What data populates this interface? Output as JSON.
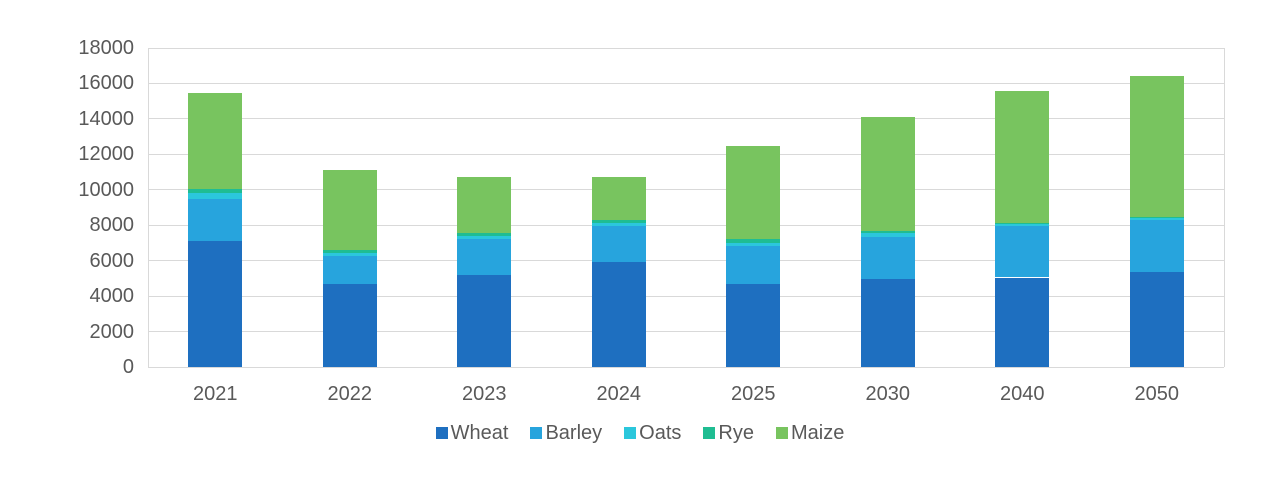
{
  "chart_data": {
    "type": "bar",
    "stacked": true,
    "title": "",
    "categories": [
      "2021",
      "2022",
      "2023",
      "2024",
      "2025",
      "2030",
      "2040",
      "2050"
    ],
    "series": [
      {
        "name": "Wheat",
        "color": "#1e6fc0",
        "values": [
          7100,
          4700,
          5200,
          5900,
          4700,
          4950,
          5050,
          5350
        ]
      },
      {
        "name": "Barley",
        "color": "#27a4dd",
        "values": [
          2400,
          1550,
          2000,
          2050,
          2100,
          2400,
          2900,
          2950
        ]
      },
      {
        "name": "Oats",
        "color": "#2bc7dc",
        "values": [
          300,
          200,
          200,
          200,
          200,
          200,
          100,
          100
        ]
      },
      {
        "name": "Rye",
        "color": "#1fbd92",
        "values": [
          250,
          150,
          150,
          150,
          200,
          150,
          50,
          50
        ]
      },
      {
        "name": "Maize",
        "color": "#78c45f",
        "values": [
          5400,
          4500,
          3150,
          2400,
          5250,
          6400,
          7500,
          7950
        ]
      }
    ],
    "totals": [
      15450,
      11100,
      10700,
      10700,
      12450,
      14100,
      15600,
      16400
    ],
    "ylim": [
      0,
      18000
    ],
    "ytick_step": 2000,
    "yticks": [
      "0",
      "2000",
      "4000",
      "6000",
      "8000",
      "10000",
      "12000",
      "14000",
      "16000",
      "18000"
    ],
    "xlabel": "",
    "ylabel": "",
    "grid": true,
    "legend_position": "bottom",
    "colors": {
      "axis_text": "#595959",
      "gridline": "#d9d9d9",
      "background": "#ffffff"
    }
  }
}
